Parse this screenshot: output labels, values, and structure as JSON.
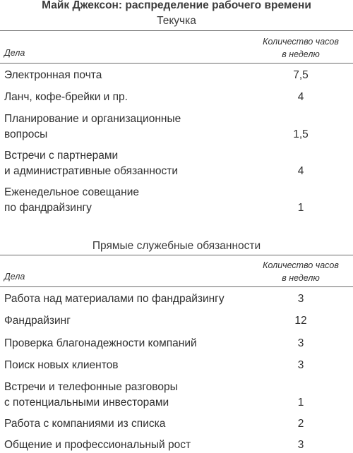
{
  "title": "Майк Джексон: распределение рабочего времени",
  "section1": {
    "subtitle": "Текучка",
    "header_left": "Дела",
    "header_right_line1": "Количество часов",
    "header_right_line2": "в неделю",
    "rows": [
      {
        "name": [
          "Электронная почта"
        ],
        "value": "7,5"
      },
      {
        "name": [
          "Ланч, кофе-брейки и пр."
        ],
        "value": "4"
      },
      {
        "name": [
          "Планирование и организационные",
          "вопросы"
        ],
        "value": "1,5"
      },
      {
        "name": [
          "Встречи с партнерами",
          "и административные обязанности"
        ],
        "value": "4"
      },
      {
        "name": [
          "Еженедельное совещание",
          "по фандрайзингу"
        ],
        "value": "1"
      }
    ]
  },
  "section2": {
    "subtitle": "Прямые служебные обязанности",
    "header_left": "Дела",
    "header_right_line1": "Количество часов",
    "header_right_line2": "в неделю",
    "rows": [
      {
        "name": [
          "Работа над материалами по фандрайзингу"
        ],
        "value": "3"
      },
      {
        "name": [
          "Фандрайзинг"
        ],
        "value": "12"
      },
      {
        "name": [
          "Проверка благонадежности компаний"
        ],
        "value": "3"
      },
      {
        "name": [
          "Поиск новых клиентов"
        ],
        "value": "3"
      },
      {
        "name": [
          "Встречи и телефонные разговоры",
          "с потенциальными инвесторами"
        ],
        "value": "1"
      },
      {
        "name": [
          "Работа с компаниями из списка"
        ],
        "value": "2"
      },
      {
        "name": [
          "Общение и профессиональный рост"
        ],
        "value": "3"
      }
    ]
  }
}
